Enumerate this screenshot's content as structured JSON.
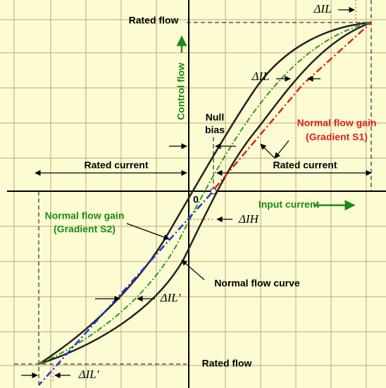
{
  "labels": {
    "rated_flow_top": "Rated flow",
    "delta_il_top": "ΔIL",
    "control_flow": "Control flow",
    "delta_il_mid": "ΔIL",
    "null": "Null",
    "bias": "bias",
    "gain_s1": "Normal flow gain",
    "gradient_s1": "(Gradient S1)",
    "rated_current_left": "Rated current",
    "rated_current_right": "Rated current",
    "origin": "0",
    "input_current": "Input current",
    "gain_s2": "Normal flow gain",
    "gradient_s2": "(Gradient S2)",
    "delta_ih": "ΔIH",
    "normal_flow_curve": "Normal flow curve",
    "delta_il_prime_mid": "ΔIL'",
    "rated_flow_bottom": "Rated flow",
    "delta_il_prime_bottom": "ΔIL'"
  }
}
